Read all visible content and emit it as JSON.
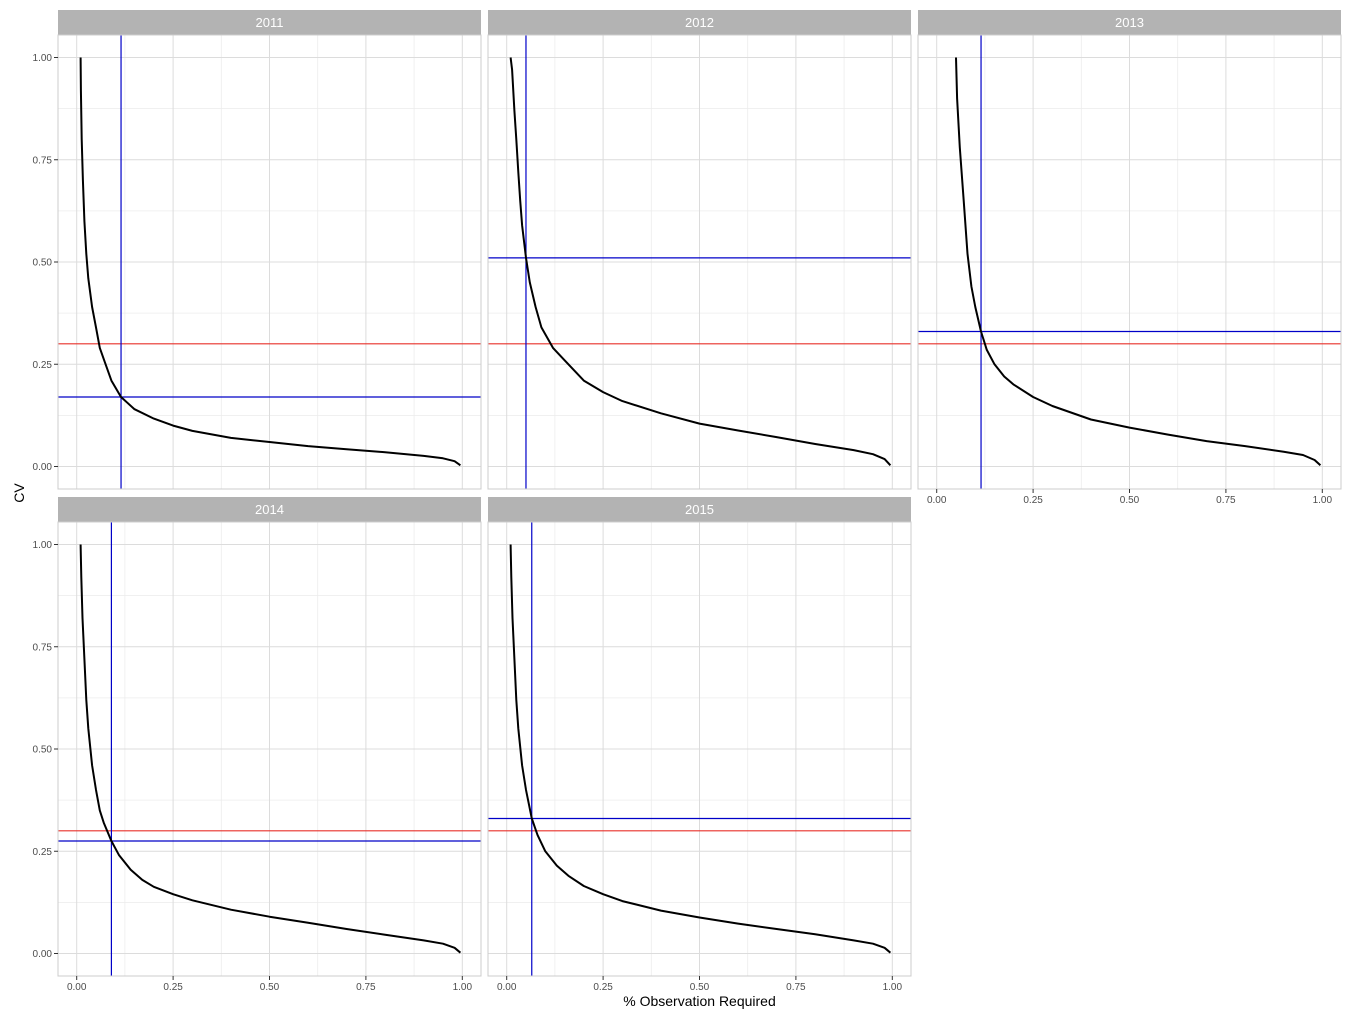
{
  "chart_data": {
    "type": "line",
    "facet_by": "year",
    "xlabel": "% Observation Required",
    "ylabel": "CV",
    "xlim": [
      0,
      1
    ],
    "ylim": [
      0,
      1
    ],
    "x_ticks": [
      "0.00",
      "0.25",
      "0.50",
      "0.75",
      "1.00"
    ],
    "y_ticks": [
      "0.00",
      "0.25",
      "0.50",
      "0.75",
      "1.00"
    ],
    "grid": true,
    "colors": {
      "curve": "#000000",
      "threshold": "#e8302a",
      "crossing": "#0000c8",
      "strip": "#b3b3b3",
      "grid": "#dcdcdc"
    },
    "threshold_cv": 0.3,
    "panels": [
      {
        "title": "2011",
        "crossing_x": 0.115,
        "crossing_cv": 0.17,
        "curve": [
          [
            0.01,
            1.0
          ],
          [
            0.011,
            0.92
          ],
          [
            0.013,
            0.8
          ],
          [
            0.016,
            0.7
          ],
          [
            0.02,
            0.6
          ],
          [
            0.025,
            0.52
          ],
          [
            0.03,
            0.46
          ],
          [
            0.04,
            0.39
          ],
          [
            0.05,
            0.34
          ],
          [
            0.06,
            0.29
          ],
          [
            0.075,
            0.25
          ],
          [
            0.09,
            0.21
          ],
          [
            0.115,
            0.17
          ],
          [
            0.15,
            0.14
          ],
          [
            0.2,
            0.117
          ],
          [
            0.25,
            0.1
          ],
          [
            0.3,
            0.087
          ],
          [
            0.4,
            0.07
          ],
          [
            0.5,
            0.06
          ],
          [
            0.6,
            0.05
          ],
          [
            0.7,
            0.042
          ],
          [
            0.8,
            0.035
          ],
          [
            0.9,
            0.026
          ],
          [
            0.95,
            0.02
          ],
          [
            0.98,
            0.013
          ],
          [
            0.995,
            0.003
          ]
        ]
      },
      {
        "title": "2012",
        "crossing_x": 0.05,
        "crossing_cv": 0.51,
        "curve": [
          [
            0.01,
            1.0
          ],
          [
            0.014,
            0.97
          ],
          [
            0.02,
            0.87
          ],
          [
            0.025,
            0.8
          ],
          [
            0.03,
            0.72
          ],
          [
            0.035,
            0.65
          ],
          [
            0.04,
            0.59
          ],
          [
            0.05,
            0.51
          ],
          [
            0.06,
            0.45
          ],
          [
            0.075,
            0.39
          ],
          [
            0.09,
            0.34
          ],
          [
            0.12,
            0.29
          ],
          [
            0.15,
            0.26
          ],
          [
            0.2,
            0.21
          ],
          [
            0.25,
            0.182
          ],
          [
            0.3,
            0.16
          ],
          [
            0.4,
            0.13
          ],
          [
            0.5,
            0.105
          ],
          [
            0.6,
            0.088
          ],
          [
            0.7,
            0.072
          ],
          [
            0.8,
            0.055
          ],
          [
            0.9,
            0.04
          ],
          [
            0.95,
            0.03
          ],
          [
            0.98,
            0.018
          ],
          [
            0.995,
            0.003
          ]
        ]
      },
      {
        "title": "2013",
        "crossing_x": 0.115,
        "crossing_cv": 0.33,
        "curve": [
          [
            0.05,
            1.0
          ],
          [
            0.053,
            0.9
          ],
          [
            0.06,
            0.78
          ],
          [
            0.07,
            0.65
          ],
          [
            0.08,
            0.52
          ],
          [
            0.09,
            0.44
          ],
          [
            0.1,
            0.39
          ],
          [
            0.115,
            0.33
          ],
          [
            0.13,
            0.285
          ],
          [
            0.15,
            0.25
          ],
          [
            0.175,
            0.22
          ],
          [
            0.2,
            0.2
          ],
          [
            0.25,
            0.17
          ],
          [
            0.3,
            0.148
          ],
          [
            0.4,
            0.115
          ],
          [
            0.5,
            0.095
          ],
          [
            0.6,
            0.078
          ],
          [
            0.7,
            0.062
          ],
          [
            0.8,
            0.05
          ],
          [
            0.9,
            0.036
          ],
          [
            0.95,
            0.028
          ],
          [
            0.98,
            0.016
          ],
          [
            0.995,
            0.003
          ]
        ]
      },
      {
        "title": "2014",
        "crossing_x": 0.09,
        "crossing_cv": 0.275,
        "curve": [
          [
            0.01,
            1.0
          ],
          [
            0.012,
            0.92
          ],
          [
            0.015,
            0.82
          ],
          [
            0.02,
            0.72
          ],
          [
            0.025,
            0.62
          ],
          [
            0.03,
            0.55
          ],
          [
            0.04,
            0.46
          ],
          [
            0.05,
            0.4
          ],
          [
            0.06,
            0.35
          ],
          [
            0.07,
            0.32
          ],
          [
            0.09,
            0.275
          ],
          [
            0.11,
            0.24
          ],
          [
            0.14,
            0.205
          ],
          [
            0.17,
            0.18
          ],
          [
            0.2,
            0.163
          ],
          [
            0.25,
            0.145
          ],
          [
            0.3,
            0.13
          ],
          [
            0.4,
            0.107
          ],
          [
            0.5,
            0.09
          ],
          [
            0.6,
            0.075
          ],
          [
            0.7,
            0.06
          ],
          [
            0.8,
            0.046
          ],
          [
            0.9,
            0.032
          ],
          [
            0.95,
            0.024
          ],
          [
            0.98,
            0.014
          ],
          [
            0.995,
            0.002
          ]
        ]
      },
      {
        "title": "2015",
        "crossing_x": 0.065,
        "crossing_cv": 0.33,
        "curve": [
          [
            0.01,
            1.0
          ],
          [
            0.012,
            0.92
          ],
          [
            0.015,
            0.82
          ],
          [
            0.02,
            0.72
          ],
          [
            0.025,
            0.62
          ],
          [
            0.03,
            0.55
          ],
          [
            0.04,
            0.46
          ],
          [
            0.05,
            0.4
          ],
          [
            0.065,
            0.33
          ],
          [
            0.08,
            0.29
          ],
          [
            0.1,
            0.25
          ],
          [
            0.13,
            0.215
          ],
          [
            0.16,
            0.19
          ],
          [
            0.2,
            0.165
          ],
          [
            0.25,
            0.145
          ],
          [
            0.3,
            0.128
          ],
          [
            0.4,
            0.105
          ],
          [
            0.5,
            0.088
          ],
          [
            0.6,
            0.073
          ],
          [
            0.7,
            0.06
          ],
          [
            0.8,
            0.047
          ],
          [
            0.9,
            0.032
          ],
          [
            0.95,
            0.024
          ],
          [
            0.98,
            0.014
          ],
          [
            0.995,
            0.002
          ]
        ]
      }
    ]
  }
}
